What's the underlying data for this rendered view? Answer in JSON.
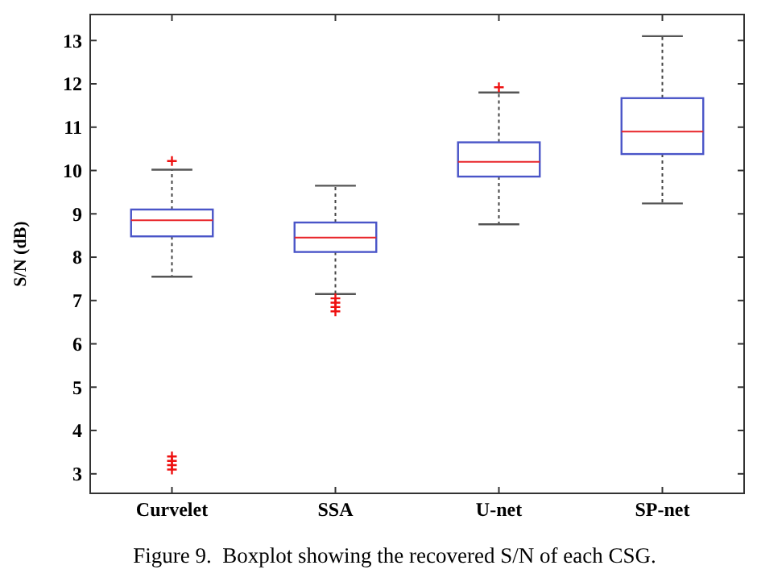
{
  "chart_data": {
    "type": "box",
    "ylabel": "S/N (dB)",
    "categories": [
      "Curvelet",
      "SSA",
      "U-net",
      "SP-net"
    ],
    "boxes": [
      {
        "low": 7.55,
        "q1": 8.48,
        "median": 8.85,
        "q3": 9.1,
        "high": 10.02,
        "outliers": [
          10.22,
          3.1,
          3.2,
          3.3,
          3.4
        ]
      },
      {
        "low": 7.15,
        "q1": 8.12,
        "median": 8.45,
        "q3": 8.8,
        "high": 9.65,
        "outliers": [
          7.05,
          6.95,
          6.85,
          6.75
        ]
      },
      {
        "low": 8.76,
        "q1": 9.86,
        "median": 10.2,
        "q3": 10.65,
        "high": 11.8,
        "outliers": [
          11.92
        ]
      },
      {
        "low": 9.24,
        "q1": 10.38,
        "median": 10.9,
        "q3": 11.67,
        "high": 13.1
      }
    ],
    "color": "#4a55c8",
    "ylim": [
      2.55,
      13.6
    ],
    "yticks": [
      3,
      4,
      5,
      6,
      7,
      8,
      9,
      10,
      11,
      12,
      13
    ],
    "annotations": [
      "Figure 9.  Boxplot showing the recovered S/N of each CSG."
    ]
  }
}
